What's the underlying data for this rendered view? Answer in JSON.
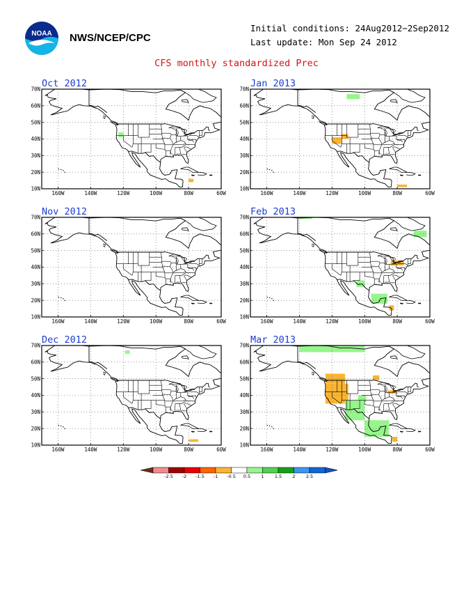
{
  "header": {
    "org": "NWS/NCEP/CPC",
    "initial_conditions": "Initial conditions: 24Aug2012−2Sep2012",
    "last_update": "Last update: Mon Sep 24 2012",
    "title": "CFS monthly standardized Prec",
    "logo_text": "NOAA"
  },
  "map_axes": {
    "y_ticks": [
      "70N",
      "60N",
      "50N",
      "40N",
      "30N",
      "20N",
      "10N"
    ],
    "x_ticks": [
      "160W",
      "140W",
      "120W",
      "100W",
      "80W",
      "60W"
    ]
  },
  "panels": [
    {
      "title": "Oct 2012",
      "anomalies": [
        {
          "lon": -123,
          "lat": 41,
          "w": 3,
          "h": 3,
          "color": "#96f58c"
        },
        {
          "lon": -80,
          "lat": 14,
          "w": 3,
          "h": 2,
          "color": "#fab432"
        }
      ]
    },
    {
      "title": "Jan 2013",
      "anomalies": [
        {
          "lon": -111,
          "lat": 64,
          "w": 8,
          "h": 3,
          "color": "#96f58c"
        },
        {
          "lon": -120,
          "lat": 37,
          "w": 6,
          "h": 4,
          "color": "#fab432"
        },
        {
          "lon": -114,
          "lat": 40,
          "w": 4,
          "h": 3,
          "color": "#fab432"
        },
        {
          "lon": -80,
          "lat": 11,
          "w": 6,
          "h": 1.5,
          "color": "#fab432"
        }
      ]
    },
    {
      "title": "Nov 2012",
      "anomalies": []
    },
    {
      "title": "Feb 2013",
      "anomalies": [
        {
          "lon": -140,
          "lat": 69,
          "w": 8,
          "h": 1.5,
          "color": "#96f58c"
        },
        {
          "lon": -70,
          "lat": 58,
          "w": 8,
          "h": 4,
          "color": "#96f58c"
        },
        {
          "lon": -84,
          "lat": 41,
          "w": 8,
          "h": 3,
          "color": "#fab432"
        },
        {
          "lon": -105,
          "lat": 28,
          "w": 5,
          "h": 4,
          "color": "#96f58c"
        },
        {
          "lon": -96,
          "lat": 18,
          "w": 10,
          "h": 6,
          "color": "#96f58c"
        },
        {
          "lon": -85,
          "lat": 14,
          "w": 3,
          "h": 3,
          "color": "#fab432"
        }
      ]
    },
    {
      "title": "Dec 2012",
      "anomalies": [
        {
          "lon": -119,
          "lat": 65,
          "w": 3,
          "h": 2,
          "color": "#96f58c"
        },
        {
          "lon": -80,
          "lat": 12,
          "w": 6,
          "h": 1.5,
          "color": "#fab432"
        }
      ]
    },
    {
      "title": "Mar 2013",
      "anomalies": [
        {
          "lon": -140,
          "lat": 66,
          "w": 40,
          "h": 6,
          "color": "#96f58c"
        },
        {
          "lon": -124,
          "lat": 47,
          "w": 12,
          "h": 6,
          "color": "#fab432"
        },
        {
          "lon": -124,
          "lat": 35,
          "w": 14,
          "h": 12,
          "color": "#fab432"
        },
        {
          "lon": -95,
          "lat": 49,
          "w": 4,
          "h": 3,
          "color": "#fab432"
        },
        {
          "lon": -104,
          "lat": 36,
          "w": 5,
          "h": 4,
          "color": "#96f58c"
        },
        {
          "lon": -112,
          "lat": 25,
          "w": 12,
          "h": 12,
          "color": "#96f58c"
        },
        {
          "lon": -100,
          "lat": 15,
          "w": 15,
          "h": 10,
          "color": "#96f58c"
        },
        {
          "lon": -86,
          "lat": 41,
          "w": 6,
          "h": 2,
          "color": "#fab432"
        },
        {
          "lon": -83,
          "lat": 12,
          "w": 3,
          "h": 3,
          "color": "#fab432"
        }
      ]
    }
  ],
  "legend": {
    "labels": [
      "-2.5",
      "-2",
      "-1.5",
      "-1",
      "-0.5",
      "0.5",
      "1",
      "1.5",
      "2",
      "2.5"
    ],
    "colors": [
      "#f08c8c",
      "#a00000",
      "#e60000",
      "#ff6400",
      "#fab432",
      "#ffffff",
      "#96f58c",
      "#50d250",
      "#14a014",
      "#3c96f0",
      "#1464d2"
    ],
    "end_colors": [
      "#6e2d14",
      "#1450c8"
    ]
  }
}
